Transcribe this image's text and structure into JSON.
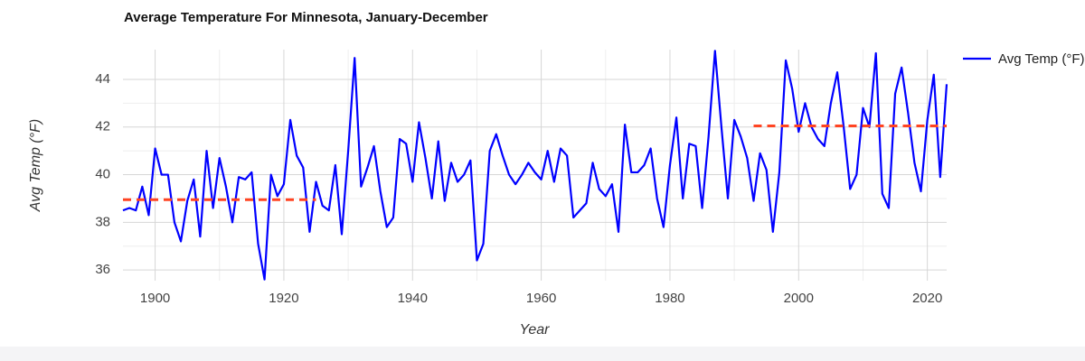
{
  "chart_data": {
    "type": "line",
    "title": "Average Temperature For Minnesota, January-December",
    "x_label": "Year",
    "y_label": "Avg Temp (°F)",
    "x": [
      1895,
      1896,
      1897,
      1898,
      1899,
      1900,
      1901,
      1902,
      1903,
      1904,
      1905,
      1906,
      1907,
      1908,
      1909,
      1910,
      1911,
      1912,
      1913,
      1914,
      1915,
      1916,
      1917,
      1918,
      1919,
      1920,
      1921,
      1922,
      1923,
      1924,
      1925,
      1926,
      1927,
      1928,
      1929,
      1930,
      1931,
      1932,
      1933,
      1934,
      1935,
      1936,
      1937,
      1938,
      1939,
      1940,
      1941,
      1942,
      1943,
      1944,
      1945,
      1946,
      1947,
      1948,
      1949,
      1950,
      1951,
      1952,
      1953,
      1954,
      1955,
      1956,
      1957,
      1958,
      1959,
      1960,
      1961,
      1962,
      1963,
      1964,
      1965,
      1966,
      1967,
      1968,
      1969,
      1970,
      1971,
      1972,
      1973,
      1974,
      1975,
      1976,
      1977,
      1978,
      1979,
      1980,
      1981,
      1982,
      1983,
      1984,
      1985,
      1986,
      1987,
      1988,
      1989,
      1990,
      1991,
      1992,
      1993,
      1994,
      1995,
      1996,
      1997,
      1998,
      1999,
      2000,
      2001,
      2002,
      2003,
      2004,
      2005,
      2006,
      2007,
      2008,
      2009,
      2010,
      2011,
      2012,
      2013,
      2014,
      2015,
      2016,
      2017,
      2018,
      2019,
      2020,
      2021,
      2022,
      2023
    ],
    "series": [
      {
        "name": "Avg Temp (°F)",
        "color": "#0000ff",
        "values": [
          38.5,
          38.6,
          38.5,
          39.5,
          38.3,
          41.1,
          40.0,
          40.0,
          38.0,
          37.2,
          38.9,
          39.8,
          37.4,
          41.0,
          38.6,
          40.7,
          39.5,
          38.0,
          39.9,
          39.8,
          40.1,
          37.1,
          35.6,
          40.0,
          39.1,
          39.6,
          42.3,
          40.8,
          40.3,
          37.6,
          39.7,
          38.7,
          38.5,
          40.4,
          37.5,
          41.0,
          44.9,
          39.5,
          40.3,
          41.2,
          39.3,
          37.8,
          38.2,
          41.5,
          41.3,
          39.7,
          42.2,
          40.7,
          39.0,
          41.4,
          38.9,
          40.5,
          39.7,
          40.0,
          40.6,
          36.4,
          37.1,
          41.0,
          41.7,
          40.8,
          40.0,
          39.6,
          40.0,
          40.5,
          40.1,
          39.8,
          41.0,
          39.7,
          41.1,
          40.8,
          38.2,
          38.5,
          38.8,
          40.5,
          39.4,
          39.1,
          39.6,
          37.6,
          42.1,
          40.1,
          40.1,
          40.4,
          41.1,
          39.0,
          37.8,
          40.4,
          42.4,
          39.0,
          41.3,
          41.2,
          38.6,
          41.6,
          45.2,
          42.0,
          39.0,
          42.3,
          41.6,
          40.7,
          38.9,
          40.9,
          40.2,
          37.6,
          40.1,
          44.8,
          43.6,
          41.8,
          43.0,
          42.0,
          41.5,
          41.2,
          43.0,
          44.3,
          42.0,
          39.4,
          40.0,
          42.8,
          42.0,
          45.1,
          39.2,
          38.6,
          43.4,
          44.5,
          42.6,
          40.5,
          39.3,
          42.3,
          44.2,
          39.9,
          43.8
        ]
      }
    ],
    "reference_lines": [
      {
        "x": [
          1895,
          1925
        ],
        "value": 38.95,
        "color": "#ff4422"
      },
      {
        "x": [
          1993,
          2023
        ],
        "value": 42.05,
        "color": "#ff4422"
      }
    ],
    "xlim": [
      1895,
      2023
    ],
    "ylim": [
      35.55,
      45.25
    ],
    "xticks": [
      1900,
      1920,
      1940,
      1960,
      1980,
      2000,
      2020
    ],
    "yticks": [
      36,
      38,
      40,
      42,
      44
    ],
    "grid": true,
    "legend": "right"
  }
}
